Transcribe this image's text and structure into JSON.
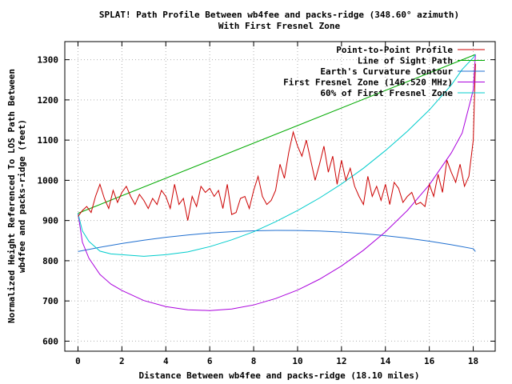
{
  "chart_data": {
    "type": "line",
    "title": "SPLAT! Path Profile Between wb4fee and packs-ridge (348.60° azimuth)",
    "subtitle": "With First Fresnel Zone",
    "xlabel": "Distance Between wb4fee and packs-ridge (18.10 miles)",
    "ylabel_line1": "Normalized Height Referenced To LOS Path Between",
    "ylabel_line2": "wb4fee and packs-ridge (feet)",
    "xlim": [
      -0.6,
      19
    ],
    "ylim": [
      575,
      1345
    ],
    "xticks": [
      0,
      2,
      4,
      6,
      8,
      10,
      12,
      14,
      16,
      18
    ],
    "yticks": [
      600,
      700,
      800,
      900,
      1000,
      1100,
      1200,
      1300
    ],
    "grid": true,
    "legend_position": "top-right",
    "series": [
      {
        "name": "Point-to-Point Profile",
        "color": "#cc0000",
        "x": [
          0,
          0.2,
          0.4,
          0.6,
          0.8,
          1.0,
          1.2,
          1.4,
          1.6,
          1.8,
          2.0,
          2.2,
          2.4,
          2.6,
          2.8,
          3.0,
          3.2,
          3.4,
          3.6,
          3.8,
          4.0,
          4.2,
          4.4,
          4.6,
          4.8,
          5.0,
          5.2,
          5.4,
          5.6,
          5.8,
          6.0,
          6.2,
          6.4,
          6.6,
          6.8,
          7.0,
          7.2,
          7.4,
          7.6,
          7.8,
          8.0,
          8.2,
          8.4,
          8.6,
          8.8,
          9.0,
          9.2,
          9.4,
          9.6,
          9.8,
          10.0,
          10.2,
          10.4,
          10.6,
          10.8,
          11.0,
          11.2,
          11.4,
          11.6,
          11.8,
          12.0,
          12.2,
          12.4,
          12.6,
          12.8,
          13.0,
          13.2,
          13.4,
          13.6,
          13.8,
          14.0,
          14.2,
          14.4,
          14.6,
          14.8,
          15.0,
          15.2,
          15.4,
          15.6,
          15.8,
          16.0,
          16.2,
          16.4,
          16.6,
          16.8,
          17.0,
          17.2,
          17.4,
          17.6,
          17.8,
          18.0,
          18.1
        ],
        "values": [
          910,
          925,
          935,
          920,
          960,
          990,
          955,
          930,
          975,
          945,
          970,
          985,
          960,
          940,
          965,
          950,
          930,
          955,
          940,
          975,
          960,
          930,
          990,
          940,
          955,
          900,
          960,
          935,
          985,
          970,
          980,
          960,
          975,
          930,
          990,
          915,
          920,
          955,
          960,
          930,
          975,
          1010,
          960,
          940,
          950,
          975,
          1040,
          1005,
          1070,
          1120,
          1085,
          1060,
          1100,
          1050,
          1000,
          1040,
          1085,
          1020,
          1060,
          990,
          1050,
          1000,
          1030,
          985,
          960,
          940,
          1010,
          960,
          985,
          950,
          990,
          940,
          995,
          980,
          945,
          960,
          970,
          940,
          945,
          935,
          990,
          960,
          1015,
          970,
          1050,
          1020,
          995,
          1040,
          985,
          1010,
          1100,
          1290
        ]
      },
      {
        "name": "Line of Sight Path",
        "color": "#00aa00",
        "x": [
          0,
          18.1
        ],
        "values": [
          918,
          1313
        ]
      },
      {
        "name": "Earth's Curvature Contour",
        "color": "#1f6fd0",
        "x": [
          0,
          1,
          2,
          3,
          4,
          5,
          6,
          7,
          8,
          9,
          9.05,
          10,
          11,
          12,
          13,
          14,
          15,
          16,
          17,
          18,
          18.1
        ],
        "values": [
          823,
          833.4,
          842.9,
          851.2,
          858.3,
          864.1,
          868.8,
          872.2,
          874.4,
          875.5,
          875.5,
          875.3,
          873.9,
          871.3,
          867.5,
          862.4,
          856.1,
          848.6,
          839.9,
          829.9,
          823
        ]
      },
      {
        "name": "First Fresnel Zone (146.520 MHz)",
        "color": "#aa00dd",
        "x": [
          0,
          0.2,
          0.5,
          1,
          1.5,
          2,
          3,
          4,
          5,
          6,
          7,
          8,
          9,
          10,
          11,
          12,
          13,
          14,
          15,
          16,
          17,
          17.5,
          18,
          18.1
        ],
        "values": [
          918,
          846,
          806,
          766,
          742,
          726,
          701,
          686,
          678,
          676,
          680,
          690,
          706,
          727,
          754,
          787,
          826,
          872,
          925,
          989,
          1068,
          1118,
          1225,
          1313
        ]
      },
      {
        "name": "60% of First Fresnel Zone",
        "color": "#00cccc",
        "x": [
          0,
          0.2,
          0.5,
          1,
          1.5,
          2,
          3,
          4,
          5,
          6,
          7,
          8,
          9,
          10,
          11,
          12,
          13,
          14,
          15,
          16,
          17,
          17.5,
          18,
          18.1
        ],
        "values": [
          918,
          874,
          848,
          824,
          817,
          815,
          811,
          815,
          822,
          835,
          852,
          872,
          897,
          925,
          956,
          991,
          1030,
          1074,
          1122,
          1175,
          1237,
          1276,
          1305,
          1313
        ]
      }
    ]
  }
}
